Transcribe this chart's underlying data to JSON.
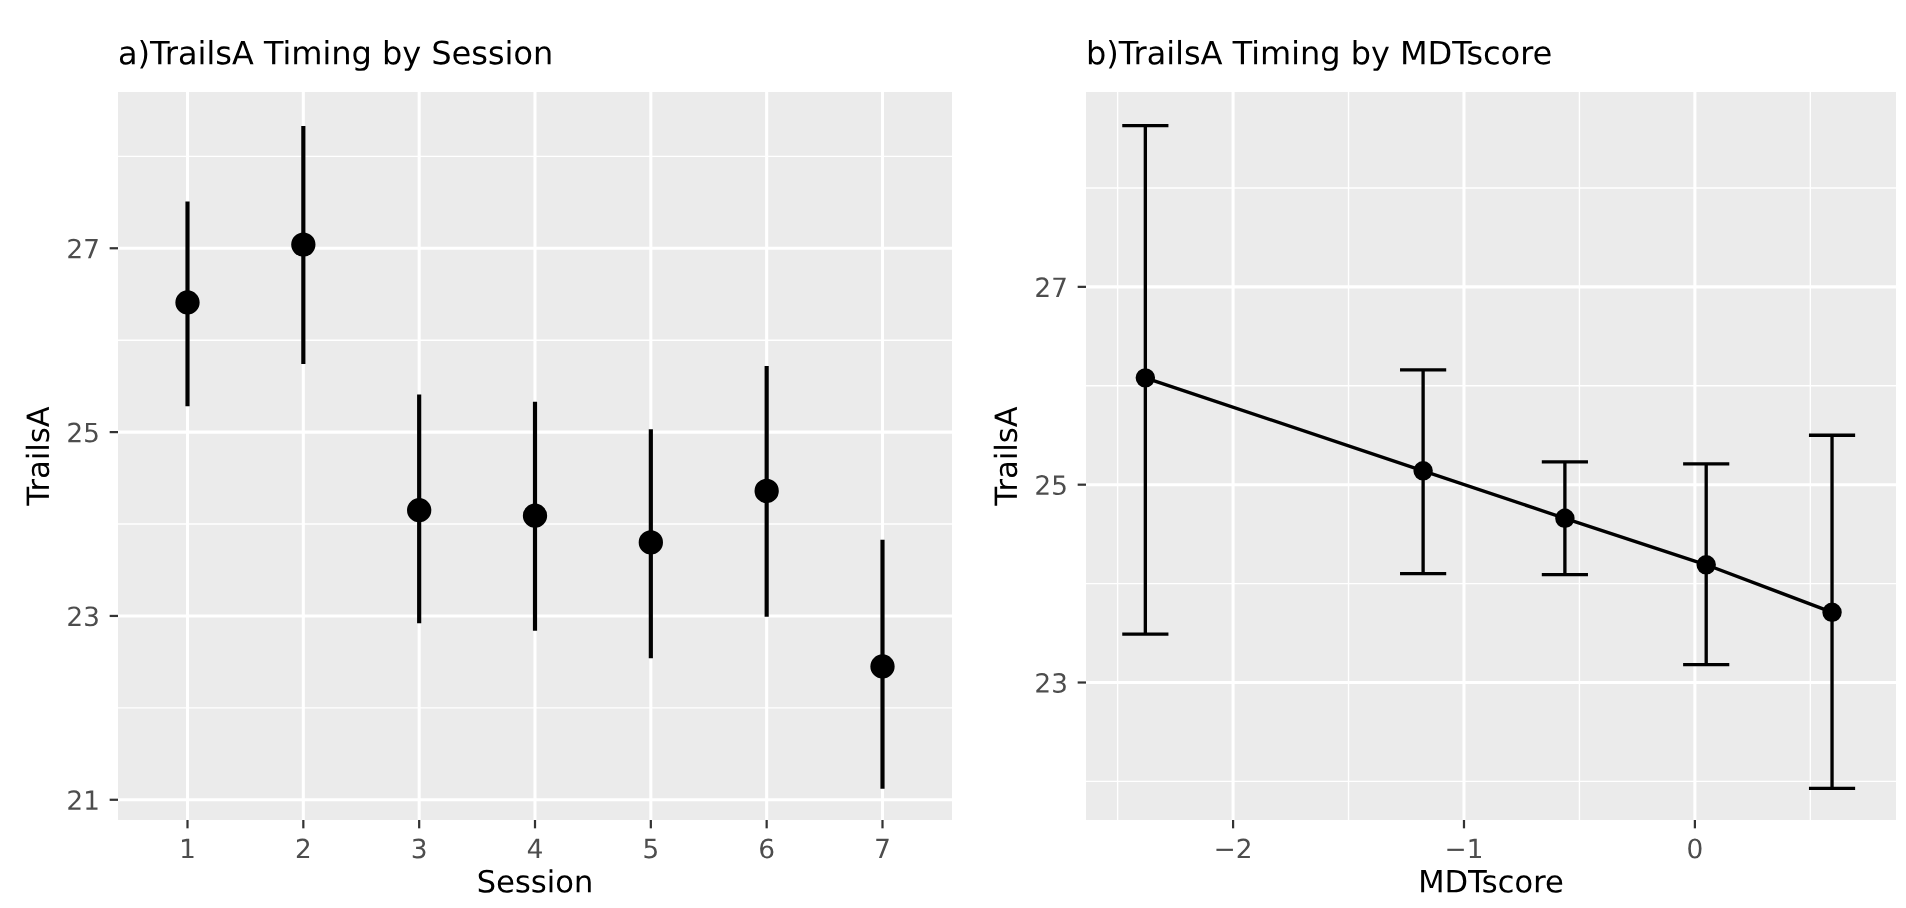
{
  "chart_data": [
    {
      "type": "scatter",
      "title": "a)TrailsA Timing by Session",
      "xlabel": "Session",
      "ylabel": "TrailsA",
      "categories": [
        "1",
        "2",
        "3",
        "4",
        "5",
        "6",
        "7"
      ],
      "series": [
        {
          "color": "#000000",
          "values": [
            26.41,
            27.04,
            24.15,
            24.09,
            23.8,
            24.36,
            22.45
          ],
          "errors": [
            [
              25.28,
              27.51
            ],
            [
              25.74,
              28.33
            ],
            [
              22.92,
              25.41
            ],
            [
              22.84,
              25.33
            ],
            [
              22.54,
              25.03
            ],
            [
              22.99,
              25.72
            ],
            [
              21.12,
              23.83
            ]
          ]
        }
      ],
      "ylim": [
        20.78,
        28.7
      ],
      "yticks": [
        21,
        23,
        25,
        27
      ],
      "grid": true,
      "marker": "circle"
    },
    {
      "type": "line",
      "title": "b)TrailsA Timing by MDTscore",
      "xlabel": "MDTscore",
      "ylabel": "TrailsA",
      "series": [
        {
          "color": "#000000",
          "x": [
            -2.38,
            -1.177,
            -0.563,
            0.049,
            0.594
          ],
          "values": [
            26.08,
            25.14,
            24.66,
            24.19,
            23.71
          ],
          "errors": [
            [
              23.49,
              28.63
            ],
            [
              24.1,
              26.16
            ],
            [
              24.09,
              25.23
            ],
            [
              23.18,
              25.21
            ],
            [
              21.93,
              25.5
            ]
          ]
        }
      ],
      "xlim": [
        -2.637,
        0.871
      ],
      "xticks": [
        {
          "value": -2,
          "label": "−2"
        },
        {
          "value": -1,
          "label": "−1"
        },
        0
      ],
      "ylim": [
        21.61,
        28.97
      ],
      "yticks": [
        23,
        25,
        27
      ],
      "grid": true,
      "marker": "circle",
      "line_style": "solid"
    }
  ]
}
